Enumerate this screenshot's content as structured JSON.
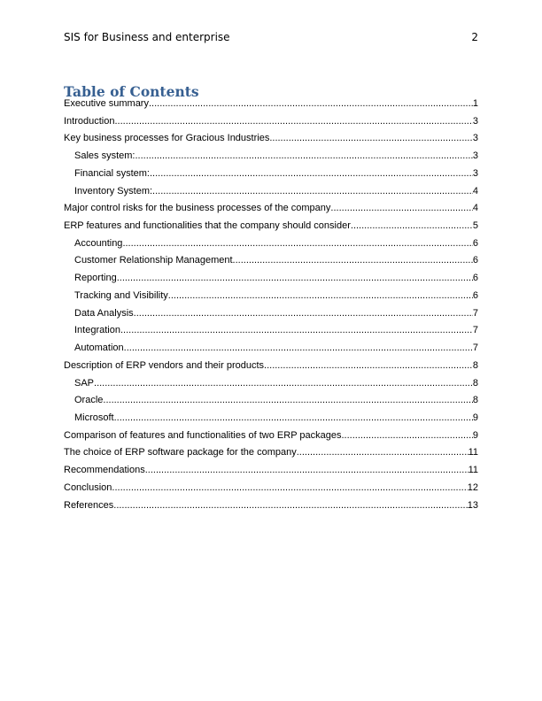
{
  "header": {
    "running_title": "SIS for Business and enterprise",
    "page_number": "2"
  },
  "toc": {
    "title": "Table of Contents",
    "title_color": "#365f91",
    "entries": [
      {
        "label": "Executive summary",
        "page": "1",
        "level": 1
      },
      {
        "label": "Introduction",
        "page": "3",
        "level": 1
      },
      {
        "label": "Key business processes for Gracious Industries",
        "page": "3",
        "level": 1
      },
      {
        "label": "Sales system:",
        "page": "3",
        "level": 2
      },
      {
        "label": "Financial system:",
        "page": "3",
        "level": 2
      },
      {
        "label": "Inventory System:",
        "page": "4",
        "level": 2
      },
      {
        "label": "Major control risks for the business processes of the company",
        "page": "4",
        "level": 1
      },
      {
        "label": "ERP features and functionalities that the company should consider",
        "page": "5",
        "level": 1
      },
      {
        "label": "Accounting",
        "page": "6",
        "level": 2
      },
      {
        "label": "Customer Relationship Management",
        "page": "6",
        "level": 2
      },
      {
        "label": "Reporting",
        "page": "6",
        "level": 2
      },
      {
        "label": "Tracking and Visibility",
        "page": "6",
        "level": 2
      },
      {
        "label": "Data Analysis",
        "page": "7",
        "level": 2
      },
      {
        "label": "Integration",
        "page": "7",
        "level": 2
      },
      {
        "label": "Automation",
        "page": "7",
        "level": 2
      },
      {
        "label": "Description of ERP vendors and their products",
        "page": "8",
        "level": 1
      },
      {
        "label": "SAP",
        "page": "8",
        "level": 2
      },
      {
        "label": "Oracle",
        "page": "8",
        "level": 2
      },
      {
        "label": "Microsoft",
        "page": "9",
        "level": 2
      },
      {
        "label": "Comparison of features and functionalities of two ERP packages",
        "page": "9",
        "level": 1
      },
      {
        "label": "The choice of ERP software package for the company",
        "page": "11",
        "level": 1
      },
      {
        "label": "Recommendations",
        "page": "11",
        "level": 1
      },
      {
        "label": "Conclusion",
        "page": "12",
        "level": 1
      },
      {
        "label": "References",
        "page": "13",
        "level": 1
      }
    ]
  }
}
